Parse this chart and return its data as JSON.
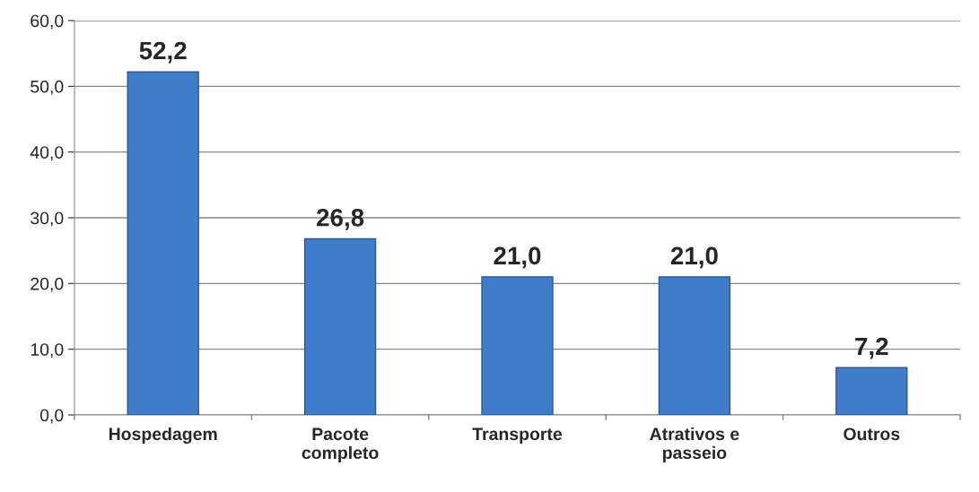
{
  "chart_data": {
    "type": "bar",
    "categories": [
      "Hospedagem",
      "Pacote\ncompleto",
      "Transporte",
      "Atrativos e\npasseio",
      "Outros"
    ],
    "values": [
      52.2,
      26.8,
      21.0,
      21.0,
      7.2
    ],
    "value_labels": [
      "52,2",
      "26,8",
      "21,0",
      "21,0",
      "7,2"
    ],
    "color": "#3f7cc9",
    "ylim": [
      0,
      60
    ],
    "yticks": [
      {
        "value": 0,
        "label": "0,0"
      },
      {
        "value": 10,
        "label": "10,0"
      },
      {
        "value": 20,
        "label": "20,0"
      },
      {
        "value": 30,
        "label": "30,0"
      },
      {
        "value": 40,
        "label": "40,0"
      },
      {
        "value": 50,
        "label": "50,0"
      },
      {
        "value": 60,
        "label": "60,0"
      }
    ],
    "grid": "y"
  }
}
